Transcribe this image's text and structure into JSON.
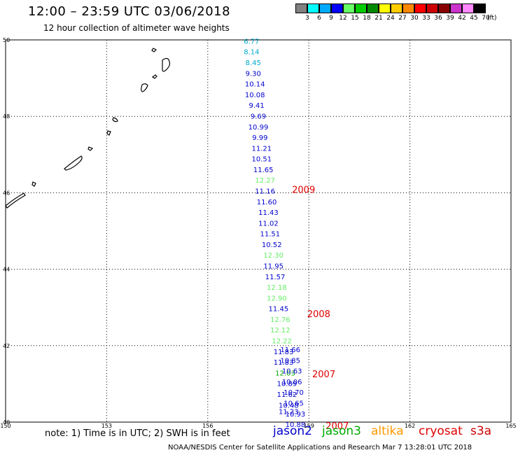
{
  "header": {
    "title": "12:00 – 23:59 UTC 03/06/2018",
    "subtitle": "12 hour collection of altimeter wave heights"
  },
  "color_scale": {
    "unit": "(ft)",
    "swatches": [
      "#808080",
      "#00ffff",
      "#00aaff",
      "#0000ff",
      "#66ff66",
      "#00cc00",
      "#008800",
      "#ffff00",
      "#ffcc00",
      "#ff8800",
      "#ff0000",
      "#cc0000",
      "#880000",
      "#cc33cc",
      "#ff88ff",
      "#000000"
    ],
    "labels": [
      "3",
      "6",
      "9",
      "12",
      "15",
      "18",
      "21",
      "24",
      "27",
      "30",
      "33",
      "36",
      "39",
      "42",
      "45",
      "70"
    ]
  },
  "chart_data": {
    "type": "map",
    "xlim": [
      150,
      165
    ],
    "ylim": [
      40,
      50
    ],
    "x_ticks": [
      "150",
      "153",
      "156",
      "159",
      "162",
      "165"
    ],
    "y_ticks": [
      "40",
      "42",
      "44",
      "46",
      "48",
      "50"
    ],
    "grid": true,
    "series_colors": {
      "jason2": "#0000cc",
      "jason3": "#00aa00",
      "altika": "#ff9900",
      "cryosat": "#dd0000",
      "s3a": "#cc0000",
      "cyan": "#00aacc",
      "lightgreen": "#66ee66"
    },
    "track_points": [
      {
        "lon": 157.3,
        "lat": 49.9,
        "label": "6.77",
        "color": "cyan"
      },
      {
        "lon": 157.3,
        "lat": 49.62,
        "label": "8.14",
        "color": "cyan"
      },
      {
        "lon": 157.35,
        "lat": 49.34,
        "label": "8.45",
        "color": "cyan"
      },
      {
        "lon": 157.35,
        "lat": 49.06,
        "label": "9.30",
        "color": "jason2"
      },
      {
        "lon": 157.4,
        "lat": 48.78,
        "label": "10.14",
        "color": "jason2"
      },
      {
        "lon": 157.4,
        "lat": 48.5,
        "label": "10.08",
        "color": "jason2"
      },
      {
        "lon": 157.45,
        "lat": 48.22,
        "label": "9.41",
        "color": "jason2"
      },
      {
        "lon": 157.5,
        "lat": 47.94,
        "label": "9.69",
        "color": "jason2"
      },
      {
        "lon": 157.5,
        "lat": 47.66,
        "label": "10.99",
        "color": "jason2"
      },
      {
        "lon": 157.55,
        "lat": 47.38,
        "label": "9.99",
        "color": "jason2"
      },
      {
        "lon": 157.6,
        "lat": 47.1,
        "label": "11.21",
        "color": "jason2"
      },
      {
        "lon": 157.6,
        "lat": 46.82,
        "label": "10.51",
        "color": "jason2"
      },
      {
        "lon": 157.65,
        "lat": 46.54,
        "label": "11.65",
        "color": "jason2"
      },
      {
        "lon": 157.7,
        "lat": 46.26,
        "label": "12.27",
        "color": "lightgreen"
      },
      {
        "lon": 157.7,
        "lat": 45.98,
        "label": "11.16",
        "color": "jason2"
      },
      {
        "lon": 157.75,
        "lat": 45.7,
        "label": "11.60",
        "color": "jason2"
      },
      {
        "lon": 157.8,
        "lat": 45.42,
        "label": "11.43",
        "color": "jason2"
      },
      {
        "lon": 157.8,
        "lat": 45.14,
        "label": "11.02",
        "color": "jason2"
      },
      {
        "lon": 157.85,
        "lat": 44.86,
        "label": "11.51",
        "color": "jason2"
      },
      {
        "lon": 157.9,
        "lat": 44.58,
        "label": "10.52",
        "color": "jason2"
      },
      {
        "lon": 157.95,
        "lat": 44.3,
        "label": "12.30",
        "color": "lightgreen"
      },
      {
        "lon": 157.95,
        "lat": 44.02,
        "label": "11.95",
        "color": "jason2"
      },
      {
        "lon": 158.0,
        "lat": 43.74,
        "label": "11.57",
        "color": "jason2"
      },
      {
        "lon": 158.05,
        "lat": 43.46,
        "label": "12.18",
        "color": "lightgreen"
      },
      {
        "lon": 158.05,
        "lat": 43.18,
        "label": "12.90",
        "color": "lightgreen"
      },
      {
        "lon": 158.1,
        "lat": 42.9,
        "label": "11.45",
        "color": "jason2"
      },
      {
        "lon": 158.15,
        "lat": 42.62,
        "label": "12.76",
        "color": "lightgreen"
      },
      {
        "lon": 158.15,
        "lat": 42.34,
        "label": "12.12",
        "color": "lightgreen"
      },
      {
        "lon": 158.2,
        "lat": 42.06,
        "label": "12.22",
        "color": "lightgreen"
      },
      {
        "lon": 158.25,
        "lat": 41.78,
        "label": "11.83",
        "color": "jason2"
      },
      {
        "lon": 158.25,
        "lat": 41.5,
        "label": "11.83",
        "color": "jason2"
      },
      {
        "lon": 158.3,
        "lat": 41.22,
        "label": "12.03",
        "color": "jason3"
      },
      {
        "lon": 158.35,
        "lat": 40.94,
        "label": "10.89",
        "color": "jason2"
      },
      {
        "lon": 158.35,
        "lat": 40.66,
        "label": "11.62",
        "color": "jason2"
      },
      {
        "lon": 158.4,
        "lat": 40.38,
        "label": "10.48",
        "color": "jason2"
      },
      {
        "lon": 158.4,
        "lat": 40.21,
        "label": "11.23",
        "color": "jason2"
      }
    ],
    "track_points_lower": [
      {
        "lon": 158.45,
        "lat": 41.83,
        "label": "11.66",
        "color": "jason2"
      },
      {
        "lon": 158.45,
        "lat": 41.55,
        "label": "10.85",
        "color": "jason2"
      },
      {
        "lon": 158.5,
        "lat": 41.27,
        "label": "10.63",
        "color": "jason2"
      },
      {
        "lon": 158.5,
        "lat": 40.99,
        "label": "10.06",
        "color": "jason2"
      },
      {
        "lon": 158.55,
        "lat": 40.71,
        "label": "10.70",
        "color": "jason2"
      },
      {
        "lon": 158.55,
        "lat": 40.43,
        "label": "10.65",
        "color": "jason2"
      },
      {
        "lon": 158.6,
        "lat": 40.15,
        "label": "10.93",
        "color": "jason2"
      },
      {
        "lon": 158.6,
        "lat": 39.87,
        "label": "10.88",
        "color": "jason2"
      }
    ],
    "annotations": [
      {
        "lon": 158.5,
        "lat": 46.0,
        "label": "2009",
        "color": "cryosat"
      },
      {
        "lon": 158.95,
        "lat": 42.75,
        "label": "2008",
        "color": "cryosat"
      },
      {
        "lon": 159.1,
        "lat": 41.17,
        "label": "2007",
        "color": "cryosat"
      },
      {
        "lon": 159.5,
        "lat": 39.82,
        "label": "2007",
        "color": "cryosat"
      }
    ]
  },
  "note": "note: 1) Time is in UTC; 2) SWH is in feet",
  "legend": [
    {
      "name": "jason2",
      "color": "#0000cc"
    },
    {
      "name": "jason3",
      "color": "#00aa00"
    },
    {
      "name": "altika",
      "color": "#ff9900"
    },
    {
      "name": "cryosat",
      "color": "#dd0000"
    },
    {
      "name": "s3a",
      "color": "#cc0000"
    }
  ],
  "footer": "NOAA/NESDIS Center for Satellite Applications and Research    Mar  7 13:28:01 UTC 2018"
}
